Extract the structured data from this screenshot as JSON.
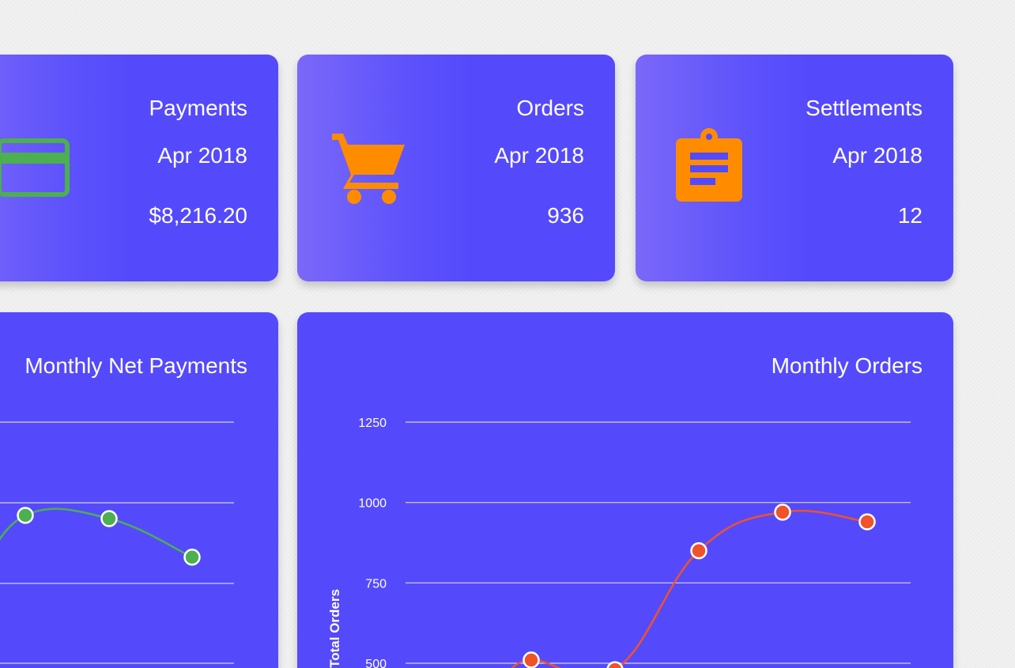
{
  "stat_cards": [
    {
      "title": "Payments",
      "period": "Apr 2018",
      "value": "$8,216.20",
      "icon": "credit-card-icon",
      "icon_color": "#4caf50"
    },
    {
      "title": "Orders",
      "period": "Apr 2018",
      "value": "936",
      "icon": "shopping-cart-icon",
      "icon_color": "#ff8c00"
    },
    {
      "title": "Settlements",
      "period": "Apr 2018",
      "value": "12",
      "icon": "clipboard-icon",
      "icon_color": "#ff8c00"
    }
  ],
  "colors": {
    "card_background": "#544afb",
    "page_background": "#f2f2f2",
    "payments_line": "#4caf50",
    "orders_line": "#f0522a"
  },
  "chart_data": [
    {
      "type": "line",
      "title": "Monthly Net Payments",
      "ylabel": "",
      "grid": true,
      "series": [
        {
          "values": [
            960,
            950,
            830
          ],
          "color": "#4caf50"
        }
      ]
    },
    {
      "type": "line",
      "title": "Monthly Orders",
      "ylabel": "Total Orders",
      "yticks": [
        500,
        750,
        1000,
        1250
      ],
      "ylim": [
        500,
        1250
      ],
      "grid": true,
      "series": [
        {
          "values": [
            510,
            480,
            850,
            970,
            940
          ],
          "color": "#f0522a"
        }
      ]
    }
  ]
}
